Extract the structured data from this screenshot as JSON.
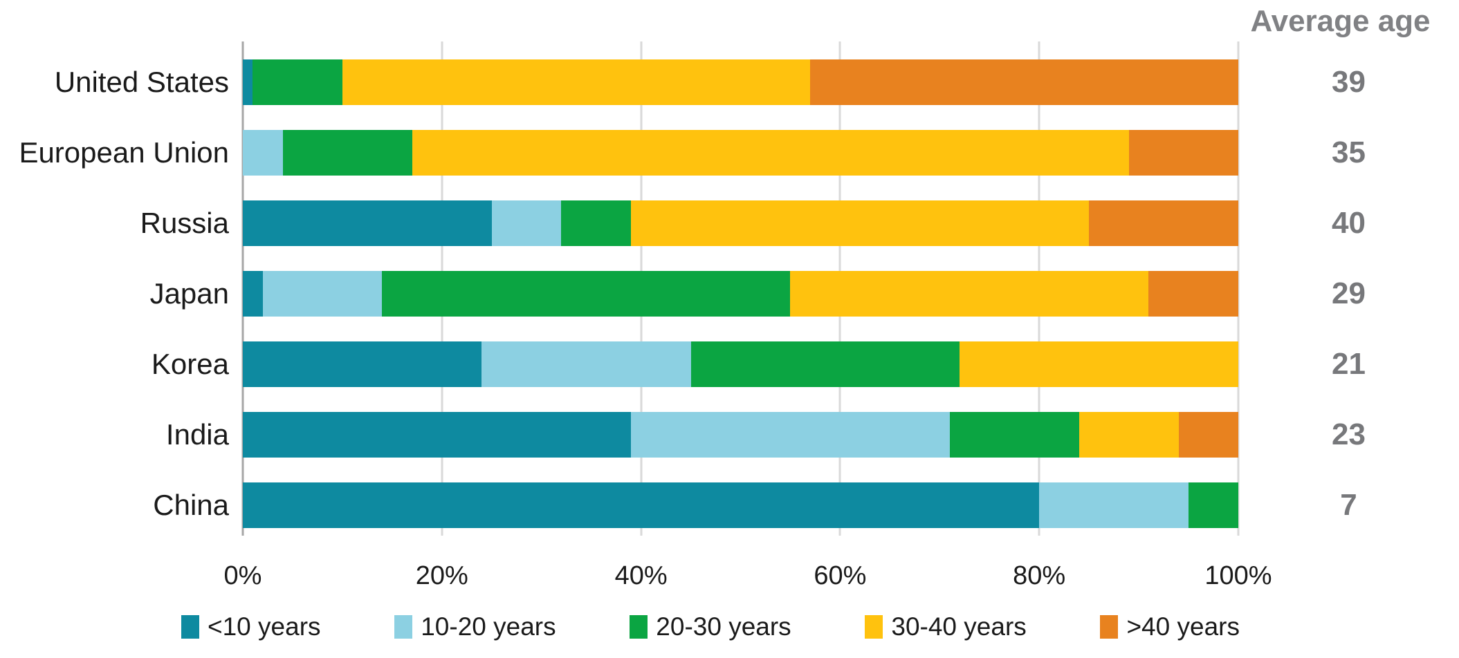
{
  "page": {
    "background_color": "#FFFFFF",
    "text_color": "#1A1A1A",
    "gridline_color": "#D9D9D9",
    "axis_line_color": "#A6A6A6"
  },
  "avg_column": {
    "header": "Average age",
    "header_color": "#808184",
    "value_color": "#77787B"
  },
  "chart_data": {
    "type": "bar",
    "orientation": "horizontal",
    "stacked": true,
    "unit": "%",
    "categories": [
      "United States",
      "European Union",
      "Russia",
      "Japan",
      "Korea",
      "India",
      "China"
    ],
    "series": [
      {
        "name": "<10 years",
        "color": "#0E8AA0",
        "values": [
          1,
          0,
          25,
          2,
          24,
          39,
          80
        ]
      },
      {
        "name": "10-20 years",
        "color": "#8CD0E2",
        "values": [
          0,
          4,
          7,
          12,
          21,
          32,
          15
        ]
      },
      {
        "name": "20-30 years",
        "color": "#0BA542",
        "values": [
          9,
          13,
          7,
          41,
          27,
          13,
          5
        ]
      },
      {
        "name": "30-40 years",
        "color": "#FFC20E",
        "values": [
          47,
          72,
          46,
          36,
          28,
          10,
          0
        ]
      },
      {
        "name": ">40 years",
        "color": "#E8821F",
        "values": [
          43,
          11,
          15,
          9,
          0,
          6,
          0
        ]
      }
    ],
    "x_ticks": [
      "0%",
      "20%",
      "40%",
      "60%",
      "80%",
      "100%"
    ],
    "xlim": [
      0,
      100
    ],
    "grid": true,
    "legend_position": "bottom",
    "right_column_label": "Average age",
    "right_column_values": [
      39,
      35,
      40,
      29,
      21,
      23,
      7
    ]
  }
}
